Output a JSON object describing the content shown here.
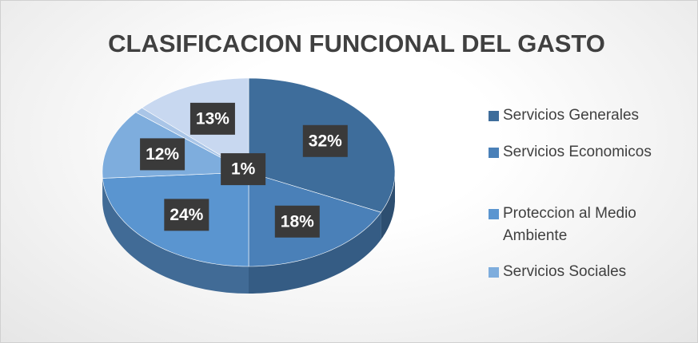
{
  "chart_data": {
    "type": "pie3d",
    "title": "CLASIFICACION FUNCIONAL DEL GASTO",
    "categories": [
      "Servicios Generales",
      "Servicios Economicos",
      "Proteccion al Medio Ambiente",
      "Servicios Sociales",
      null,
      null
    ],
    "values": [
      32,
      18,
      24,
      12,
      1,
      13
    ],
    "value_labels": [
      "32%",
      "18%",
      "24%",
      "12%",
      "1%",
      "13%"
    ],
    "colors": [
      "#3e6d9b",
      "#4a80b8",
      "#5a95d0",
      "#7eaddd",
      "#a9c5e7",
      "#c8d8f0"
    ],
    "legend": "right"
  }
}
